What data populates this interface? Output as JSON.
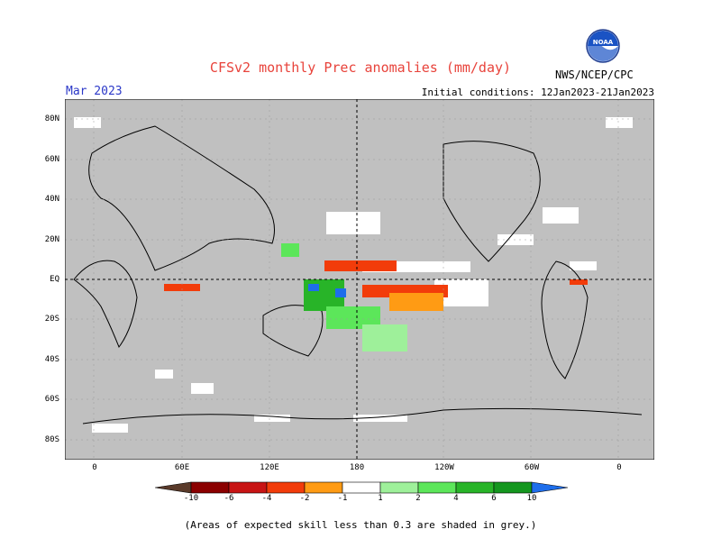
{
  "title": "CFSv2 monthly Prec anomalies (mm/day)",
  "month_label": "Mar 2023",
  "initial_conditions": "Initial conditions: 12Jan2023-21Jan2023",
  "agency": "NWS/NCEP/CPC",
  "logo_text": "NOAA",
  "lat_labels": [
    "80N",
    "60N",
    "40N",
    "20N",
    "EQ",
    "20S",
    "40S",
    "60S",
    "80S"
  ],
  "lon_labels": [
    "0",
    "60E",
    "120E",
    "180",
    "120W",
    "60W",
    "0"
  ],
  "colorbar": {
    "labels": [
      "-10",
      "-6",
      "-4",
      "-2",
      "-1",
      "1",
      "2",
      "4",
      "6",
      "10"
    ],
    "colors": [
      "#5a3a2a",
      "#8b0000",
      "#c81414",
      "#f23c0a",
      "#ff9b14",
      "#ffffff",
      "#9ef09a",
      "#5ce65a",
      "#28b428",
      "#14961e",
      "#1e6eeb"
    ]
  },
  "colors": {
    "skill_mask": "#c0c0c0",
    "land_outline": "#000000",
    "title": "#e8433b",
    "month": "#2b38c8"
  },
  "footnote": "(Areas of expected skill less than 0.3 are shaded in grey.)"
}
